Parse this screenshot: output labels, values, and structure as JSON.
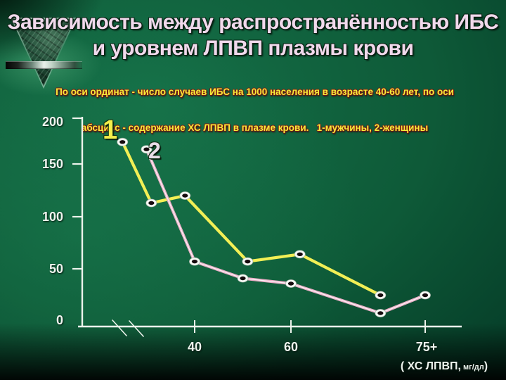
{
  "slide": {
    "title_line1": "Зависимость между распространённостью ИБС",
    "title_line2": "и уровнем ЛПВП плазмы крови",
    "subtitle_line1": "По оси ординат - число случаев ИБС на 1000 населения в возрасте 40-60 лет, по оси",
    "subtitle_line2": "абсцисс - содержание ХС ЛПВП в плазме крови.   1-мужчины, 2-женщины"
  },
  "chart_data": {
    "type": "line",
    "title": "Зависимость между распространённостью ИБС и уровнем ЛПВП плазмы крови",
    "xlabel": "( ХС ЛПВП, мг/дл)",
    "ylabel": "число случаев ИБС на 1000 населения в возрасте 40-60 лет",
    "x_axis": {
      "tick_labels": [
        "40",
        "60",
        "75+"
      ],
      "tick_values": [
        40,
        60,
        75
      ],
      "unit_prefix": "( ХС ЛПВП,",
      "unit_small": " мг/дл",
      "unit_suffix": ")",
      "broken_axis": true
    },
    "y_axis": {
      "tick_labels": [
        "200",
        "150",
        "100",
        "50",
        "0"
      ],
      "tick_values": [
        200,
        150,
        100,
        50,
        0
      ],
      "range": [
        0,
        200
      ],
      "grid": false
    },
    "legend": "labels 1 and 2 drawn beside first points",
    "series": [
      {
        "name": "1",
        "meaning": "мужчины",
        "color": "#f2ef55",
        "points": [
          [
            25,
            174
          ],
          [
            31,
            113
          ],
          [
            38,
            120
          ],
          [
            51,
            57
          ],
          [
            61,
            64
          ],
          [
            70,
            25
          ]
        ]
      },
      {
        "name": "2",
        "meaning": "женщины",
        "color": "#e9aec6",
        "core_color": "#ffffff",
        "points": [
          [
            30,
            166
          ],
          [
            40,
            57
          ],
          [
            50,
            41
          ],
          [
            60,
            36
          ],
          [
            70,
            8
          ],
          [
            75,
            25
          ]
        ]
      }
    ],
    "layout": {
      "axis_color": "#edf3ec",
      "marker": {
        "rx": 7.6,
        "ry": 5.6,
        "fill": "#f6faf5",
        "inner_rx": 4.1,
        "inner_ry": 2.7,
        "inner_fill": "#150a0d"
      },
      "y_scale": {
        "values": [
          0,
          50,
          100,
          150,
          200
        ],
        "px": [
          457,
          382,
          308,
          233,
          168
        ]
      },
      "x_scale": {
        "values": [
          40,
          60,
          75
        ],
        "px": [
          277,
          414,
          605
        ]
      },
      "axis": {
        "origin_x": 117,
        "bottom_y": 464,
        "top_y": 166,
        "right_x": 657,
        "x_start": 111,
        "ytick_x1": 103,
        "xtick_y1": 455,
        "xtick_y2": 473
      },
      "break_marks": [
        [
          160,
          455,
          180,
          477
        ],
        [
          184,
          456,
          204,
          478
        ]
      ]
    }
  }
}
